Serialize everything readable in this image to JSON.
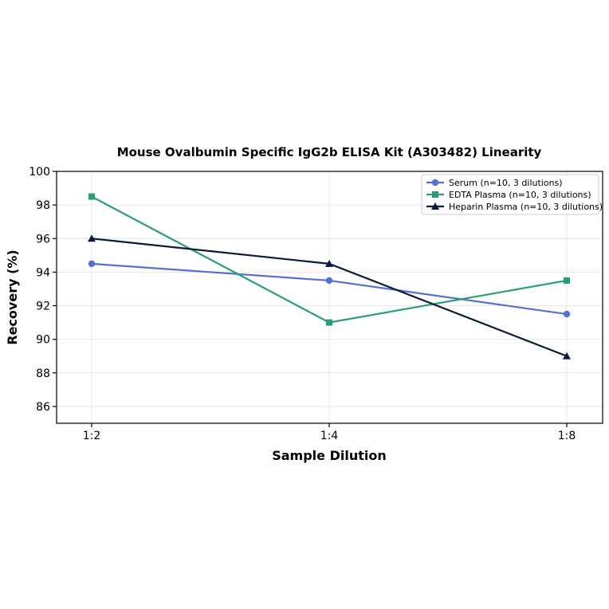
{
  "chart_data": {
    "type": "line",
    "title": "Mouse Ovalbumin Specific IgG2b ELISA Kit (A303482) Linearity",
    "xlabel": "Sample Dilution",
    "ylabel": "Recovery (%)",
    "categories": [
      "1:2",
      "1:4",
      "1:8"
    ],
    "ylim": [
      85,
      100
    ],
    "yticks": [
      86,
      88,
      90,
      92,
      94,
      96,
      98,
      100
    ],
    "grid": true,
    "legend_position": "top-right",
    "series": [
      {
        "name": "Serum (n=10, 3 dilutions)",
        "values": [
          94.5,
          93.5,
          91.5
        ],
        "color": "#5470d6",
        "marker": "circle"
      },
      {
        "name": "EDTA Plasma (n=10, 3 dilutions)",
        "values": [
          98.5,
          91.0,
          93.5
        ],
        "color": "#2a9d74",
        "marker": "square"
      },
      {
        "name": "Heparin Plasma (n=10, 3 dilutions)",
        "values": [
          96.0,
          94.5,
          89.0
        ],
        "color": "#0d1b3a",
        "marker": "triangle"
      }
    ]
  }
}
